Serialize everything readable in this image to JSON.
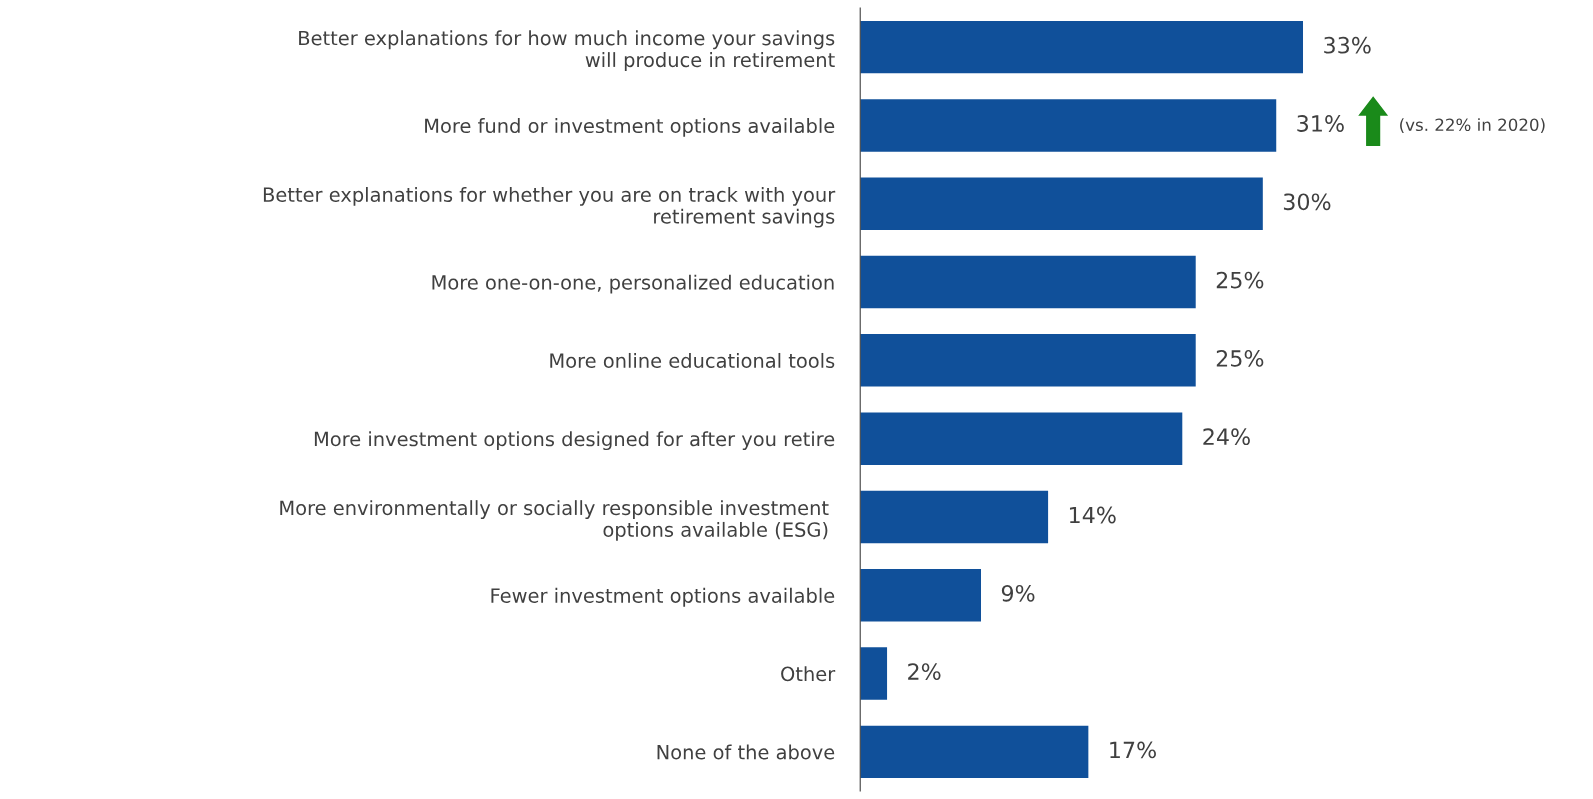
{
  "chart_data": {
    "type": "bar",
    "orientation": "horizontal",
    "categories": [
      "Better explanations for how much income your savings\nwill produce in retirement",
      "More fund or investment options available",
      "Better explanations for whether you are on track with your\nretirement savings",
      "More one-on-one, personalized education",
      "More online educational tools",
      "More investment options designed for after you retire",
      "More environmentally or socially responsible investment \noptions available (ESG) ",
      "Fewer investment options available",
      "Other",
      "None of the above"
    ],
    "values": [
      33,
      31,
      30,
      25,
      25,
      24,
      14,
      9,
      2,
      17
    ],
    "value_labels": [
      "33%",
      "31%",
      "30%",
      "25%",
      "25%",
      "24%",
      "14%",
      "9%",
      "2%",
      "17%"
    ],
    "color": "#10509a",
    "tick_labels": "y",
    "annotations": [
      "(vs. 22% in 2020)"
    ]
  }
}
